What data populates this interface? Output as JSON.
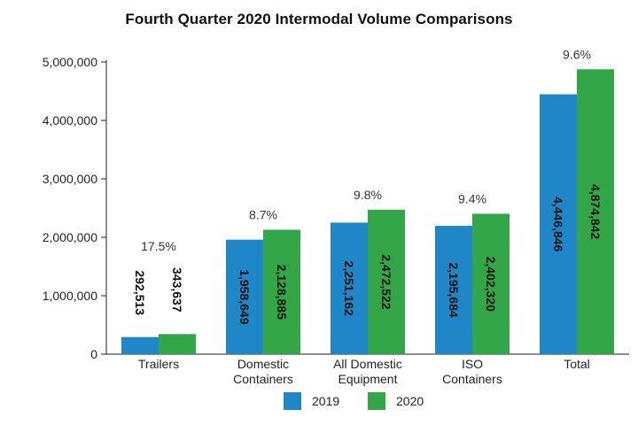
{
  "chart_data": {
    "type": "bar",
    "title": "Fourth Quarter 2020 Intermodal Volume Comparisons",
    "categories": [
      [
        "Trailers"
      ],
      [
        "Domestic",
        "Containers"
      ],
      [
        "All Domestic",
        "Equipment"
      ],
      [
        "ISO",
        "Containers"
      ],
      [
        "Total"
      ]
    ],
    "series": [
      {
        "name": "2019",
        "color": "#1f86c8",
        "values": [
          292513,
          1958649,
          2251162,
          2195684,
          4446846
        ],
        "labels": [
          "292,513",
          "1,958,649",
          "2,251,162",
          "2,195,684",
          "4,446,846"
        ]
      },
      {
        "name": "2020",
        "color": "#33a647",
        "values": [
          343637,
          2128885,
          2472522,
          2402320,
          4874842
        ],
        "labels": [
          "343,637",
          "2,128,885",
          "2,472,522",
          "2,402,320",
          "4,874,842"
        ]
      }
    ],
    "change_labels": [
      "17.5%",
      "8.7%",
      "9.8%",
      "9.4%",
      "9.6%"
    ],
    "ylim": [
      0,
      5000000
    ],
    "yticks": [
      0,
      1000000,
      2000000,
      3000000,
      4000000,
      5000000
    ],
    "ytick_labels": [
      "0",
      "1,000,000",
      "2,000,000",
      "3,000,000",
      "4,000,000",
      "5,000,000"
    ],
    "xlabel": "",
    "ylabel": "",
    "legend_position": "bottom-center",
    "grid": false
  }
}
